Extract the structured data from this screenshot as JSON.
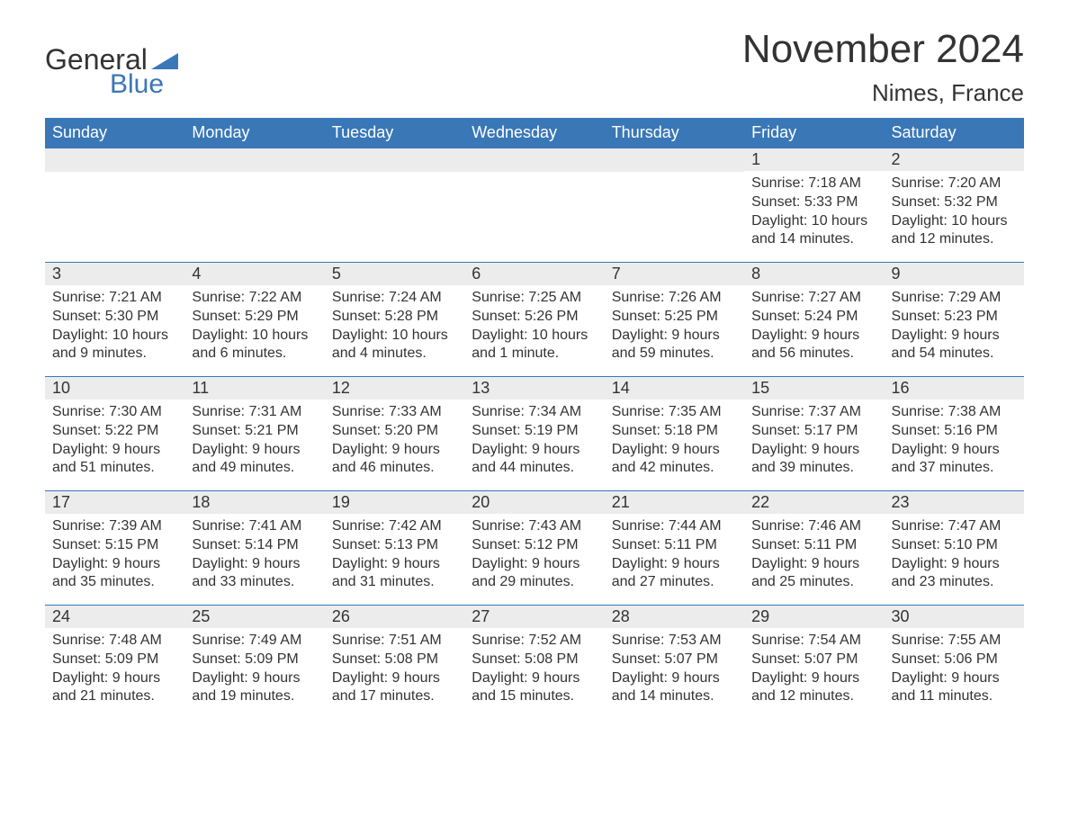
{
  "logo": {
    "text1": "General",
    "text2": "Blue",
    "tri_color": "#3A77B7"
  },
  "header": {
    "month_title": "November 2024",
    "location": "Nimes, France"
  },
  "colors": {
    "header_bg": "#3A77B7",
    "header_text": "#ffffff",
    "day_num_bg": "#ececec",
    "text": "#333333",
    "row_border": "#3A77B7",
    "background": "#ffffff"
  },
  "day_names": [
    "Sunday",
    "Monday",
    "Tuesday",
    "Wednesday",
    "Thursday",
    "Friday",
    "Saturday"
  ],
  "weeks": [
    [
      {
        "day": "",
        "sunrise": "",
        "sunset": "",
        "daylight": ""
      },
      {
        "day": "",
        "sunrise": "",
        "sunset": "",
        "daylight": ""
      },
      {
        "day": "",
        "sunrise": "",
        "sunset": "",
        "daylight": ""
      },
      {
        "day": "",
        "sunrise": "",
        "sunset": "",
        "daylight": ""
      },
      {
        "day": "",
        "sunrise": "",
        "sunset": "",
        "daylight": ""
      },
      {
        "day": "1",
        "sunrise": "Sunrise: 7:18 AM",
        "sunset": "Sunset: 5:33 PM",
        "daylight": "Daylight: 10 hours and 14 minutes."
      },
      {
        "day": "2",
        "sunrise": "Sunrise: 7:20 AM",
        "sunset": "Sunset: 5:32 PM",
        "daylight": "Daylight: 10 hours and 12 minutes."
      }
    ],
    [
      {
        "day": "3",
        "sunrise": "Sunrise: 7:21 AM",
        "sunset": "Sunset: 5:30 PM",
        "daylight": "Daylight: 10 hours and 9 minutes."
      },
      {
        "day": "4",
        "sunrise": "Sunrise: 7:22 AM",
        "sunset": "Sunset: 5:29 PM",
        "daylight": "Daylight: 10 hours and 6 minutes."
      },
      {
        "day": "5",
        "sunrise": "Sunrise: 7:24 AM",
        "sunset": "Sunset: 5:28 PM",
        "daylight": "Daylight: 10 hours and 4 minutes."
      },
      {
        "day": "6",
        "sunrise": "Sunrise: 7:25 AM",
        "sunset": "Sunset: 5:26 PM",
        "daylight": "Daylight: 10 hours and 1 minute."
      },
      {
        "day": "7",
        "sunrise": "Sunrise: 7:26 AM",
        "sunset": "Sunset: 5:25 PM",
        "daylight": "Daylight: 9 hours and 59 minutes."
      },
      {
        "day": "8",
        "sunrise": "Sunrise: 7:27 AM",
        "sunset": "Sunset: 5:24 PM",
        "daylight": "Daylight: 9 hours and 56 minutes."
      },
      {
        "day": "9",
        "sunrise": "Sunrise: 7:29 AM",
        "sunset": "Sunset: 5:23 PM",
        "daylight": "Daylight: 9 hours and 54 minutes."
      }
    ],
    [
      {
        "day": "10",
        "sunrise": "Sunrise: 7:30 AM",
        "sunset": "Sunset: 5:22 PM",
        "daylight": "Daylight: 9 hours and 51 minutes."
      },
      {
        "day": "11",
        "sunrise": "Sunrise: 7:31 AM",
        "sunset": "Sunset: 5:21 PM",
        "daylight": "Daylight: 9 hours and 49 minutes."
      },
      {
        "day": "12",
        "sunrise": "Sunrise: 7:33 AM",
        "sunset": "Sunset: 5:20 PM",
        "daylight": "Daylight: 9 hours and 46 minutes."
      },
      {
        "day": "13",
        "sunrise": "Sunrise: 7:34 AM",
        "sunset": "Sunset: 5:19 PM",
        "daylight": "Daylight: 9 hours and 44 minutes."
      },
      {
        "day": "14",
        "sunrise": "Sunrise: 7:35 AM",
        "sunset": "Sunset: 5:18 PM",
        "daylight": "Daylight: 9 hours and 42 minutes."
      },
      {
        "day": "15",
        "sunrise": "Sunrise: 7:37 AM",
        "sunset": "Sunset: 5:17 PM",
        "daylight": "Daylight: 9 hours and 39 minutes."
      },
      {
        "day": "16",
        "sunrise": "Sunrise: 7:38 AM",
        "sunset": "Sunset: 5:16 PM",
        "daylight": "Daylight: 9 hours and 37 minutes."
      }
    ],
    [
      {
        "day": "17",
        "sunrise": "Sunrise: 7:39 AM",
        "sunset": "Sunset: 5:15 PM",
        "daylight": "Daylight: 9 hours and 35 minutes."
      },
      {
        "day": "18",
        "sunrise": "Sunrise: 7:41 AM",
        "sunset": "Sunset: 5:14 PM",
        "daylight": "Daylight: 9 hours and 33 minutes."
      },
      {
        "day": "19",
        "sunrise": "Sunrise: 7:42 AM",
        "sunset": "Sunset: 5:13 PM",
        "daylight": "Daylight: 9 hours and 31 minutes."
      },
      {
        "day": "20",
        "sunrise": "Sunrise: 7:43 AM",
        "sunset": "Sunset: 5:12 PM",
        "daylight": "Daylight: 9 hours and 29 minutes."
      },
      {
        "day": "21",
        "sunrise": "Sunrise: 7:44 AM",
        "sunset": "Sunset: 5:11 PM",
        "daylight": "Daylight: 9 hours and 27 minutes."
      },
      {
        "day": "22",
        "sunrise": "Sunrise: 7:46 AM",
        "sunset": "Sunset: 5:11 PM",
        "daylight": "Daylight: 9 hours and 25 minutes."
      },
      {
        "day": "23",
        "sunrise": "Sunrise: 7:47 AM",
        "sunset": "Sunset: 5:10 PM",
        "daylight": "Daylight: 9 hours and 23 minutes."
      }
    ],
    [
      {
        "day": "24",
        "sunrise": "Sunrise: 7:48 AM",
        "sunset": "Sunset: 5:09 PM",
        "daylight": "Daylight: 9 hours and 21 minutes."
      },
      {
        "day": "25",
        "sunrise": "Sunrise: 7:49 AM",
        "sunset": "Sunset: 5:09 PM",
        "daylight": "Daylight: 9 hours and 19 minutes."
      },
      {
        "day": "26",
        "sunrise": "Sunrise: 7:51 AM",
        "sunset": "Sunset: 5:08 PM",
        "daylight": "Daylight: 9 hours and 17 minutes."
      },
      {
        "day": "27",
        "sunrise": "Sunrise: 7:52 AM",
        "sunset": "Sunset: 5:08 PM",
        "daylight": "Daylight: 9 hours and 15 minutes."
      },
      {
        "day": "28",
        "sunrise": "Sunrise: 7:53 AM",
        "sunset": "Sunset: 5:07 PM",
        "daylight": "Daylight: 9 hours and 14 minutes."
      },
      {
        "day": "29",
        "sunrise": "Sunrise: 7:54 AM",
        "sunset": "Sunset: 5:07 PM",
        "daylight": "Daylight: 9 hours and 12 minutes."
      },
      {
        "day": "30",
        "sunrise": "Sunrise: 7:55 AM",
        "sunset": "Sunset: 5:06 PM",
        "daylight": "Daylight: 9 hours and 11 minutes."
      }
    ]
  ]
}
